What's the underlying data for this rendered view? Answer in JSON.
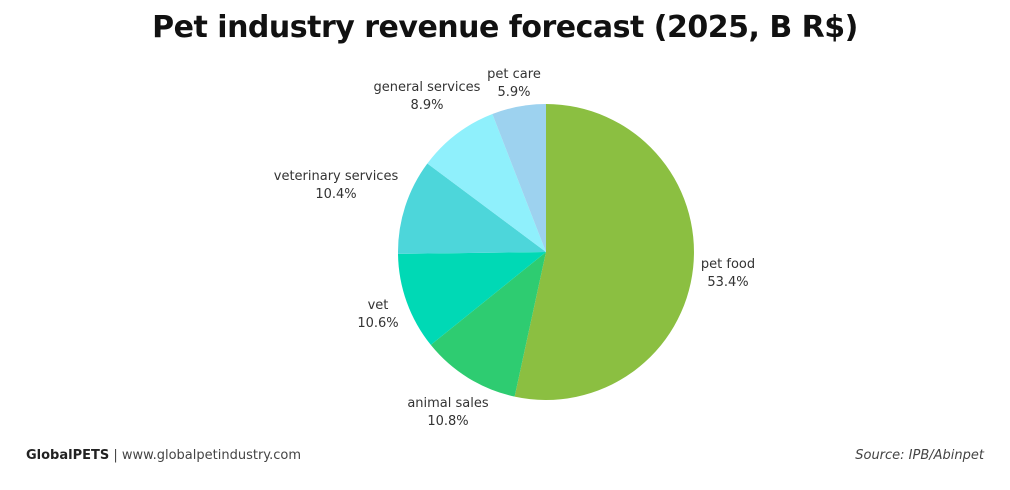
{
  "chart_data": {
    "type": "pie",
    "title": "Pet industry revenue forecast (2025, B R$)",
    "series": [
      {
        "name": "pet food",
        "label": "53.4%",
        "value": 53.4,
        "color": "#8bbf41"
      },
      {
        "name": "animal sales",
        "label": "10.8%",
        "value": 10.8,
        "color": "#2ecc71"
      },
      {
        "name": "vet",
        "label": "10.6%",
        "value": 10.6,
        "color": "#00d9b5"
      },
      {
        "name": "veterinary services",
        "label": "10.4%",
        "value": 10.4,
        "color": "#4dd6da"
      },
      {
        "name": "general services",
        "label": "8.9%",
        "value": 8.9,
        "color": "#8ff0fc"
      },
      {
        "name": "pet care",
        "label": "5.9%",
        "value": 5.9,
        "color": "#9dd2ef"
      }
    ],
    "start": "12 o'clock",
    "direction": "clockwise"
  },
  "footer": {
    "brand": "GlobalPETS",
    "separator": "|",
    "website": "www.globalpetindustry.com",
    "source": "Source: IPB/Abinpet"
  }
}
